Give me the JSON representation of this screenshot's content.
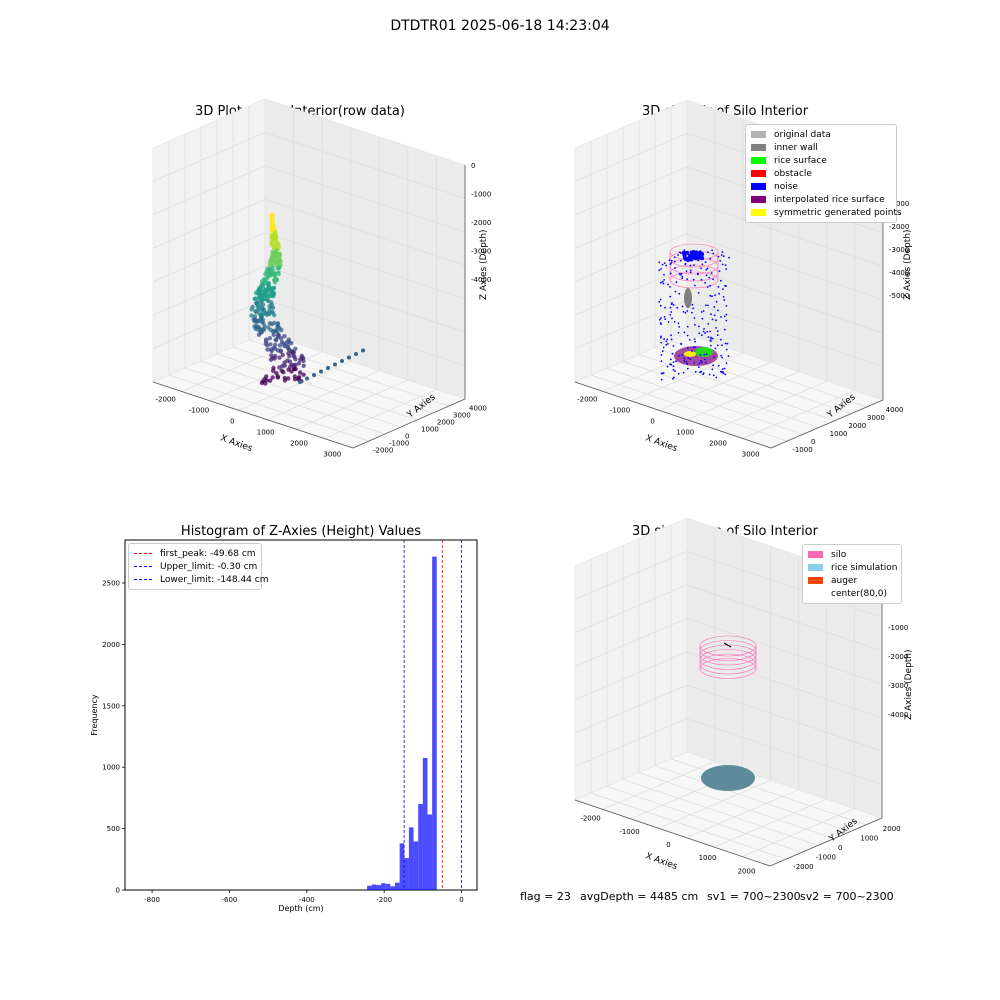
{
  "figure": {
    "suptitle": "DTDTR01 2025-06-18 14:23:04",
    "footer": {
      "flag_text": "flag = 23",
      "avgdepth_text": "avgDepth = 4485 cm",
      "sv1_text": "sv1 = 700~2300",
      "sv2_text": "sv2 = 700~2300"
    }
  },
  "panels": {
    "raw": {
      "title": "3D Plot of Silo Interior(row data)",
      "xlabel": "X Axies",
      "ylabel": "Y Axies",
      "zlabel": "Z Axies (Depth)",
      "xticks": [
        "-2000",
        "-1000",
        "0",
        "1000",
        "2000",
        "3000"
      ],
      "yticks": [
        "-2000",
        "-1000",
        "0",
        "1000",
        "2000",
        "3000",
        "4000"
      ],
      "zticks": [
        "0",
        "-1000",
        "-2000",
        "-3000",
        "-4000"
      ]
    },
    "classify": {
      "title": "3D classify of Silo Interior",
      "xlabel": "X Axies",
      "ylabel": "Y Axies",
      "zlabel": "Z Axies (Depth)",
      "xticks": [
        "-2000",
        "-1000",
        "0",
        "1000",
        "2000",
        "3000"
      ],
      "yticks": [
        "-1000",
        "0",
        "1000",
        "2000",
        "3000",
        "4000"
      ],
      "zticks": [
        "0",
        "-1000",
        "-2000",
        "-3000",
        "-4000",
        "-5000"
      ],
      "legend": [
        {
          "label": "original data",
          "color": "#b3b3b3"
        },
        {
          "label": "inner wall",
          "color": "#808080"
        },
        {
          "label": "rice surface",
          "color": "#00ff00"
        },
        {
          "label": "obstacle",
          "color": "#ff0000"
        },
        {
          "label": "noise",
          "color": "#0000ff"
        },
        {
          "label": "interpolated rice surface",
          "color": "#800080"
        },
        {
          "label": "symmetric generated points",
          "color": "#ffff00"
        }
      ]
    },
    "simulation": {
      "title": "3D simulation of Silo Interior",
      "xlabel": "X Axies",
      "ylabel": "Y Axies",
      "zlabel": "Z Axies (Depth)",
      "xticks": [
        "-2000",
        "-1000",
        "0",
        "1000",
        "2000"
      ],
      "yticks": [
        "-2000",
        "-1000",
        "0",
        "1000",
        "2000"
      ],
      "zticks": [
        "0",
        "-1000",
        "-2000",
        "-3000",
        "-4000"
      ],
      "legend": [
        {
          "label": "silo",
          "color": "#ff69b4"
        },
        {
          "label": "rice simulation",
          "color": "#87ceeb"
        },
        {
          "label": "auger",
          "color": "#ff4500"
        },
        {
          "label": "center(80,0)",
          "color": ""
        }
      ]
    }
  },
  "chart_data": {
    "type": "bar",
    "title": "Histogram of Z-Axies (Height) Values",
    "xlabel": "Depth (cm)",
    "ylabel": "Frequency",
    "xlim": [
      -870,
      40
    ],
    "ylim": [
      0,
      2850
    ],
    "xticks": [
      -800,
      -600,
      -400,
      -200,
      0
    ],
    "yticks": [
      0,
      500,
      1000,
      1500,
      2000,
      2500
    ],
    "bar_color": "#0000ff",
    "bins": [
      {
        "x0": -244,
        "x1": -232,
        "value": 35
      },
      {
        "x0": -232,
        "x1": -220,
        "value": 45
      },
      {
        "x0": -220,
        "x1": -208,
        "value": 40
      },
      {
        "x0": -208,
        "x1": -196,
        "value": 55
      },
      {
        "x0": -196,
        "x1": -184,
        "value": 50
      },
      {
        "x0": -184,
        "x1": -172,
        "value": 30
      },
      {
        "x0": -172,
        "x1": -160,
        "value": 60
      },
      {
        "x0": -160,
        "x1": -148,
        "value": 380
      },
      {
        "x0": -148,
        "x1": -136,
        "value": 260
      },
      {
        "x0": -136,
        "x1": -124,
        "value": 510
      },
      {
        "x0": -124,
        "x1": -112,
        "value": 395
      },
      {
        "x0": -112,
        "x1": -100,
        "value": 700
      },
      {
        "x0": -100,
        "x1": -88,
        "value": 1075
      },
      {
        "x0": -88,
        "x1": -76,
        "value": 615
      },
      {
        "x0": -76,
        "x1": -64,
        "value": 2715
      }
    ],
    "lines": [
      {
        "label": "first_peak: -49.68 cm",
        "x": -49.68,
        "color": "#ff0000"
      },
      {
        "label": "Upper_limit: -0.30 cm",
        "x": -0.3,
        "color": "#0000ff"
      },
      {
        "label": "Lower_limit: -148.44 cm",
        "x": -148.44,
        "color": "#0000ff"
      }
    ]
  }
}
